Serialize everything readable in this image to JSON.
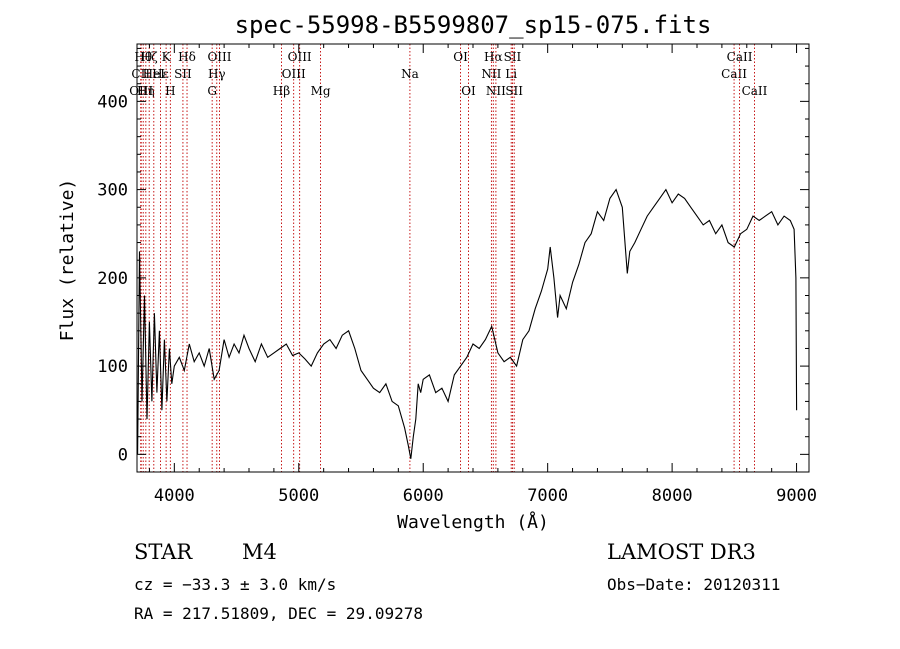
{
  "chart_data": {
    "type": "line",
    "title": "spec-55998-B5599807_sp15-075.fits",
    "xlabel": "Wavelength (Å)",
    "ylabel": "Flux (relative)",
    "xlim": [
      3700,
      9100
    ],
    "ylim": [
      -20,
      465
    ],
    "xticks": [
      4000,
      5000,
      6000,
      7000,
      8000,
      9000
    ],
    "yticks": [
      0,
      100,
      200,
      300,
      400
    ],
    "grid": false,
    "series": [
      {
        "color": "#000000",
        "x": [
          3705,
          3720,
          3740,
          3760,
          3780,
          3800,
          3820,
          3840,
          3860,
          3880,
          3900,
          3920,
          3940,
          3960,
          3980,
          4000,
          4040,
          4080,
          4120,
          4160,
          4200,
          4240,
          4280,
          4320,
          4360,
          4400,
          4440,
          4480,
          4520,
          4560,
          4600,
          4650,
          4700,
          4750,
          4800,
          4850,
          4900,
          4950,
          5000,
          5050,
          5100,
          5150,
          5200,
          5250,
          5300,
          5350,
          5400,
          5450,
          5500,
          5550,
          5600,
          5650,
          5700,
          5750,
          5800,
          5850,
          5880,
          5900,
          5920,
          5940,
          5960,
          5980,
          6000,
          6050,
          6100,
          6150,
          6200,
          6250,
          6300,
          6350,
          6400,
          6450,
          6500,
          6550,
          6600,
          6650,
          6700,
          6750,
          6800,
          6850,
          6900,
          6950,
          7000,
          7020,
          7050,
          7080,
          7100,
          7150,
          7200,
          7250,
          7300,
          7350,
          7400,
          7450,
          7500,
          7550,
          7600,
          7640,
          7660,
          7700,
          7750,
          7800,
          7850,
          7900,
          7950,
          8000,
          8050,
          8100,
          8150,
          8200,
          8250,
          8300,
          8350,
          8400,
          8450,
          8500,
          8550,
          8600,
          8650,
          8700,
          8750,
          8800,
          8850,
          8900,
          8950,
          8980,
          8995,
          9000
        ],
        "y": [
          0,
          230,
          60,
          180,
          40,
          150,
          60,
          160,
          70,
          140,
          50,
          130,
          60,
          120,
          80,
          100,
          110,
          95,
          125,
          105,
          115,
          100,
          120,
          85,
          95,
          130,
          110,
          125,
          115,
          135,
          120,
          105,
          125,
          110,
          115,
          120,
          125,
          112,
          115,
          108,
          100,
          115,
          125,
          130,
          120,
          135,
          140,
          120,
          95,
          85,
          75,
          70,
          80,
          60,
          55,
          30,
          10,
          -5,
          20,
          40,
          80,
          70,
          85,
          90,
          70,
          75,
          60,
          90,
          100,
          110,
          125,
          120,
          130,
          145,
          115,
          105,
          110,
          100,
          130,
          140,
          165,
          185,
          210,
          235,
          200,
          155,
          180,
          165,
          195,
          215,
          240,
          250,
          275,
          265,
          290,
          300,
          280,
          205,
          230,
          240,
          255,
          270,
          280,
          290,
          300,
          285,
          295,
          290,
          280,
          270,
          260,
          265,
          250,
          260,
          240,
          235,
          250,
          255,
          270,
          265,
          270,
          275,
          260,
          270,
          265,
          255,
          200,
          50
        ]
      }
    ],
    "line_markers": [
      {
        "x": 3730,
        "label": "CII",
        "row": 1
      },
      {
        "x": 3734,
        "label": "OIII",
        "row": 2
      },
      {
        "x": 3750,
        "label": "Hθ",
        "row": 0
      },
      {
        "x": 3771,
        "label": "Hη",
        "row": 2
      },
      {
        "x": 3798,
        "label": "Hζ",
        "row": 0
      },
      {
        "x": 3835,
        "label": "HeI",
        "row": 1
      },
      {
        "x": 3889,
        "label": "Hε",
        "row": 1
      },
      {
        "x": 3934,
        "label": "K",
        "row": 0
      },
      {
        "x": 3968,
        "label": "H",
        "row": 2
      },
      {
        "x": 4069,
        "label": "SII",
        "row": 1
      },
      {
        "x": 4102,
        "label": "Hδ",
        "row": 0
      },
      {
        "x": 4304,
        "label": "G",
        "row": 2
      },
      {
        "x": 4341,
        "label": "Hγ",
        "row": 1
      },
      {
        "x": 4363,
        "label": "OIII",
        "row": 0
      },
      {
        "x": 4861,
        "label": "Hβ",
        "row": 2
      },
      {
        "x": 4959,
        "label": "OIII",
        "row": 1
      },
      {
        "x": 5007,
        "label": "OIII",
        "row": 0
      },
      {
        "x": 5175,
        "label": "Mg",
        "row": 2
      },
      {
        "x": 5893,
        "label": "Na",
        "row": 1
      },
      {
        "x": 6300,
        "label": "OI",
        "row": 0
      },
      {
        "x": 6364,
        "label": "OI",
        "row": 2
      },
      {
        "x": 6548,
        "label": "NII",
        "row": 1
      },
      {
        "x": 6563,
        "label": "Hα",
        "row": 0
      },
      {
        "x": 6584,
        "label": "NII",
        "row": 2
      },
      {
        "x": 6707,
        "label": "Li",
        "row": 1
      },
      {
        "x": 6717,
        "label": "SII",
        "row": 0
      },
      {
        "x": 6731,
        "label": "SII",
        "row": 2
      },
      {
        "x": 8498,
        "label": "CaII",
        "row": 1
      },
      {
        "x": 8542,
        "label": "CaII",
        "row": 0
      },
      {
        "x": 8662,
        "label": "CaII",
        "row": 2
      }
    ]
  },
  "info": {
    "class": "STAR",
    "subclass": "M4",
    "survey": "LAMOST DR3",
    "velocity": "cz = −33.3 ± 3.0 km/s",
    "obsdate": "Obs−Date: 20120311",
    "coords": "RA = 217.51809, DEC =  29.09278"
  }
}
